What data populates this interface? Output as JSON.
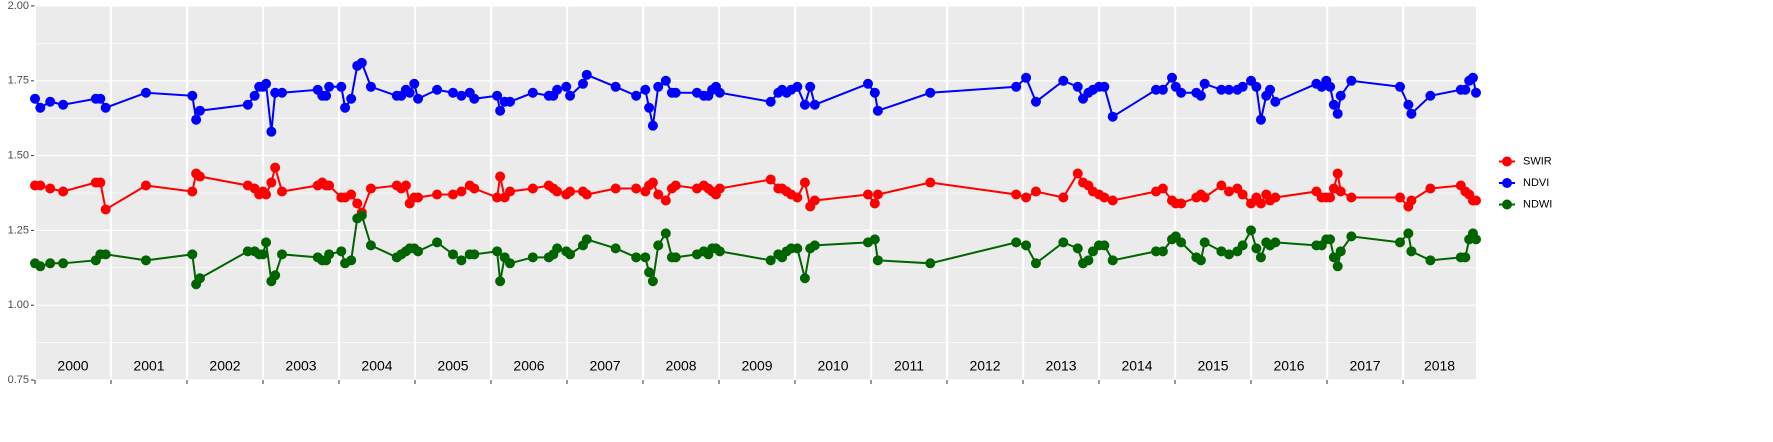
{
  "chart_data": {
    "type": "line",
    "x": [
      2000.0,
      2000.07,
      2000.2,
      2000.37,
      2000.8,
      2000.86,
      2000.93,
      2001.46,
      2002.07,
      2002.12,
      2002.17,
      2002.8,
      2002.89,
      2002.95,
      2003.0,
      2003.04,
      2003.11,
      2003.16,
      2003.25,
      2003.72,
      2003.78,
      2003.83,
      2003.87,
      2004.03,
      2004.08,
      2004.16,
      2004.24,
      2004.3,
      2004.42,
      2004.76,
      2004.82,
      2004.88,
      2004.93,
      2004.99,
      2005.04,
      2005.29,
      2005.5,
      2005.61,
      2005.72,
      2005.78,
      2006.08,
      2006.12,
      2006.18,
      2006.25,
      2006.55,
      2006.76,
      2006.82,
      2006.87,
      2006.99,
      2007.04,
      2007.21,
      2007.26,
      2007.64,
      2007.91,
      2008.03,
      2008.08,
      2008.13,
      2008.2,
      2008.3,
      2008.38,
      2008.43,
      2008.71,
      2008.8,
      2008.86,
      2008.91,
      2008.96,
      2009.01,
      2009.68,
      2009.78,
      2009.83,
      2009.89,
      2009.95,
      2010.03,
      2010.13,
      2010.2,
      2010.26,
      2010.96,
      2011.05,
      2011.09,
      2011.78,
      2012.91,
      2013.04,
      2013.17,
      2013.53,
      2013.72,
      2013.79,
      2013.86,
      2013.92,
      2014.0,
      2014.07,
      2014.18,
      2014.75,
      2014.84,
      2014.96,
      2015.01,
      2015.08,
      2015.28,
      2015.34,
      2015.39,
      2015.61,
      2015.71,
      2015.82,
      2015.89,
      2016.0,
      2016.07,
      2016.13,
      2016.2,
      2016.25,
      2016.32,
      2016.86,
      2016.93,
      2016.99,
      2017.04,
      2017.09,
      2017.14,
      2017.18,
      2017.32,
      2017.96,
      2018.07,
      2018.11,
      2018.36,
      2018.76,
      2018.82,
      2018.87,
      2018.92,
      2018.96
    ],
    "series": [
      {
        "name": "SWIR",
        "color": "#ff0000",
        "values": [
          1.4,
          1.4,
          1.39,
          1.38,
          1.41,
          1.41,
          1.32,
          1.4,
          1.38,
          1.44,
          1.43,
          1.4,
          1.39,
          1.37,
          1.38,
          1.37,
          1.41,
          1.46,
          1.38,
          1.4,
          1.41,
          1.4,
          1.4,
          1.36,
          1.36,
          1.37,
          1.34,
          1.31,
          1.39,
          1.4,
          1.39,
          1.4,
          1.34,
          1.36,
          1.36,
          1.37,
          1.37,
          1.38,
          1.4,
          1.39,
          1.36,
          1.43,
          1.36,
          1.38,
          1.39,
          1.4,
          1.39,
          1.38,
          1.37,
          1.38,
          1.38,
          1.37,
          1.39,
          1.39,
          1.38,
          1.4,
          1.41,
          1.37,
          1.35,
          1.39,
          1.4,
          1.39,
          1.4,
          1.39,
          1.38,
          1.37,
          1.39,
          1.42,
          1.39,
          1.39,
          1.38,
          1.37,
          1.36,
          1.41,
          1.33,
          1.35,
          1.37,
          1.34,
          1.37,
          1.41,
          1.37,
          1.36,
          1.38,
          1.36,
          1.44,
          1.41,
          1.4,
          1.38,
          1.37,
          1.36,
          1.35,
          1.38,
          1.39,
          1.35,
          1.34,
          1.34,
          1.36,
          1.37,
          1.36,
          1.4,
          1.38,
          1.39,
          1.37,
          1.34,
          1.36,
          1.34,
          1.37,
          1.35,
          1.36,
          1.38,
          1.36,
          1.36,
          1.36,
          1.39,
          1.44,
          1.38,
          1.36,
          1.36,
          1.33,
          1.35,
          1.39,
          1.4,
          1.38,
          1.37,
          1.35,
          1.35
        ]
      },
      {
        "name": "NDVI",
        "color": "#0000ff",
        "values": [
          1.69,
          1.66,
          1.68,
          1.67,
          1.69,
          1.69,
          1.66,
          1.71,
          1.7,
          1.62,
          1.65,
          1.67,
          1.7,
          1.73,
          1.73,
          1.74,
          1.58,
          1.71,
          1.71,
          1.72,
          1.7,
          1.7,
          1.73,
          1.73,
          1.66,
          1.69,
          1.8,
          1.81,
          1.73,
          1.7,
          1.7,
          1.72,
          1.71,
          1.74,
          1.69,
          1.72,
          1.71,
          1.7,
          1.71,
          1.69,
          1.7,
          1.65,
          1.68,
          1.68,
          1.71,
          1.7,
          1.7,
          1.72,
          1.73,
          1.7,
          1.74,
          1.77,
          1.73,
          1.7,
          1.72,
          1.66,
          1.6,
          1.73,
          1.75,
          1.71,
          1.71,
          1.71,
          1.7,
          1.7,
          1.72,
          1.73,
          1.71,
          1.68,
          1.71,
          1.72,
          1.71,
          1.72,
          1.73,
          1.67,
          1.73,
          1.67,
          1.74,
          1.71,
          1.65,
          1.71,
          1.73,
          1.76,
          1.68,
          1.75,
          1.73,
          1.69,
          1.71,
          1.72,
          1.73,
          1.73,
          1.63,
          1.72,
          1.72,
          1.76,
          1.73,
          1.71,
          1.71,
          1.7,
          1.74,
          1.72,
          1.72,
          1.72,
          1.73,
          1.75,
          1.73,
          1.62,
          1.7,
          1.72,
          1.68,
          1.74,
          1.73,
          1.75,
          1.73,
          1.67,
          1.64,
          1.7,
          1.75,
          1.73,
          1.67,
          1.64,
          1.7,
          1.72,
          1.72,
          1.75,
          1.76,
          1.71
        ]
      },
      {
        "name": "NDWI",
        "color": "#006400",
        "values": [
          1.14,
          1.13,
          1.14,
          1.14,
          1.15,
          1.17,
          1.17,
          1.15,
          1.17,
          1.07,
          1.09,
          1.18,
          1.18,
          1.17,
          1.17,
          1.21,
          1.08,
          1.1,
          1.17,
          1.16,
          1.15,
          1.15,
          1.17,
          1.18,
          1.14,
          1.15,
          1.29,
          1.3,
          1.2,
          1.16,
          1.17,
          1.18,
          1.19,
          1.19,
          1.18,
          1.21,
          1.17,
          1.15,
          1.17,
          1.17,
          1.18,
          1.08,
          1.16,
          1.14,
          1.16,
          1.16,
          1.17,
          1.19,
          1.18,
          1.17,
          1.2,
          1.22,
          1.19,
          1.16,
          1.16,
          1.11,
          1.08,
          1.2,
          1.24,
          1.16,
          1.16,
          1.17,
          1.18,
          1.17,
          1.19,
          1.19,
          1.18,
          1.15,
          1.17,
          1.16,
          1.18,
          1.19,
          1.19,
          1.09,
          1.19,
          1.2,
          1.21,
          1.22,
          1.15,
          1.14,
          1.21,
          1.2,
          1.14,
          1.21,
          1.19,
          1.14,
          1.15,
          1.18,
          1.2,
          1.2,
          1.15,
          1.18,
          1.18,
          1.22,
          1.23,
          1.21,
          1.16,
          1.15,
          1.21,
          1.18,
          1.17,
          1.18,
          1.2,
          1.25,
          1.19,
          1.16,
          1.21,
          1.2,
          1.21,
          1.2,
          1.2,
          1.22,
          1.22,
          1.16,
          1.13,
          1.18,
          1.23,
          1.21,
          1.24,
          1.18,
          1.15,
          1.16,
          1.16,
          1.22,
          1.24,
          1.22
        ]
      }
    ],
    "xlim": [
      2000,
      2018.96
    ],
    "xticks": [
      2000,
      2001,
      2002,
      2003,
      2004,
      2005,
      2006,
      2007,
      2008,
      2009,
      2010,
      2011,
      2012,
      2013,
      2014,
      2015,
      2016,
      2017,
      2018
    ],
    "year_labels": [
      "2000",
      "2001",
      "2002",
      "2003",
      "2004",
      "2005",
      "2006",
      "2007",
      "2008",
      "2009",
      "2010",
      "2011",
      "2012",
      "2013",
      "2014",
      "2015",
      "2016",
      "2017",
      "2018"
    ],
    "ylim": [
      0.75,
      2.0
    ],
    "yticks": [
      0.75,
      {
        "value": 1,
        "label": "1.00"
      },
      1.25,
      {
        "value": 1.5,
        "label": "1.50"
      },
      1.75,
      {
        "value": 2,
        "label": "2.00"
      }
    ],
    "grid": true,
    "legend": "right"
  }
}
